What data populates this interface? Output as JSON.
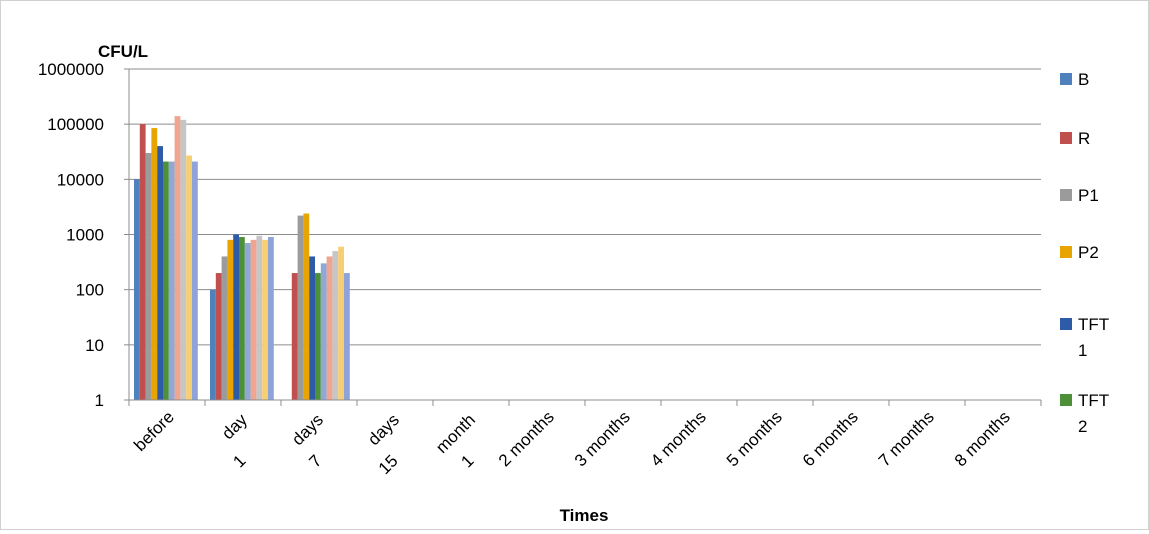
{
  "chart_data": {
    "type": "bar",
    "ylabel": "CFU/L",
    "xlabel": "Times",
    "yscale": "log",
    "ylim": [
      1,
      1000000
    ],
    "yticks": [
      "1",
      "10",
      "100",
      "1000",
      "10000",
      "100000",
      "1000000"
    ],
    "grid": true,
    "legend_position": "right",
    "categories": [
      "before",
      "1 day",
      "7 days",
      "15 days",
      "1 month",
      "2 months",
      "3 months",
      "4 months",
      "5 months",
      "6 months",
      "7 months",
      "8 months"
    ],
    "category_labels": [
      {
        "a": "before",
        "b": ""
      },
      {
        "a": "1",
        "b": "day"
      },
      {
        "a": "7",
        "b": "days"
      },
      {
        "a": "15",
        "b": "days"
      },
      {
        "a": "1",
        "b": "month"
      },
      {
        "a": "2 months",
        "b": ""
      },
      {
        "a": "3 months",
        "b": ""
      },
      {
        "a": "4 months",
        "b": ""
      },
      {
        "a": "5 months",
        "b": ""
      },
      {
        "a": "6 months",
        "b": ""
      },
      {
        "a": "7 months",
        "b": ""
      },
      {
        "a": "8 months",
        "b": ""
      }
    ],
    "series": [
      {
        "name": "B",
        "color": "#4F81BD",
        "values": [
          10000,
          100,
          null,
          null,
          null,
          null,
          null,
          null,
          null,
          null,
          null,
          null
        ]
      },
      {
        "name": "R",
        "color": "#C0504D",
        "values": [
          100000,
          200,
          200,
          null,
          null,
          null,
          null,
          null,
          null,
          null,
          null,
          null
        ]
      },
      {
        "name": "P1",
        "color": "#9B9B9B",
        "values": [
          30000,
          400,
          2200,
          null,
          null,
          null,
          null,
          null,
          null,
          null,
          null,
          null
        ]
      },
      {
        "name": "P2",
        "color": "#E8A400",
        "values": [
          85000,
          800,
          2400,
          null,
          null,
          null,
          null,
          null,
          null,
          null,
          null,
          null
        ]
      },
      {
        "name": "TFT 1",
        "color": "#2E5BA8",
        "values": [
          40000,
          1000,
          400,
          null,
          null,
          null,
          null,
          null,
          null,
          null,
          null,
          null
        ]
      },
      {
        "name": "TFT 2",
        "color": "#4E8F3A",
        "values": [
          21000,
          900,
          200,
          null,
          null,
          null,
          null,
          null,
          null,
          null,
          null,
          null
        ]
      },
      {
        "name": "",
        "color": "#8FA9D6",
        "values": [
          21000,
          700,
          300,
          null,
          null,
          null,
          null,
          null,
          null,
          null,
          null,
          null
        ]
      },
      {
        "name": "",
        "color": "#EFA590",
        "values": [
          140000,
          800,
          400,
          null,
          null,
          null,
          null,
          null,
          null,
          null,
          null,
          null
        ]
      },
      {
        "name": "",
        "color": "#C6C6C6",
        "values": [
          120000,
          950,
          500,
          null,
          null,
          null,
          null,
          null,
          null,
          null,
          null,
          null
        ]
      },
      {
        "name": "",
        "color": "#F7CF72",
        "values": [
          27000,
          800,
          600,
          null,
          null,
          null,
          null,
          null,
          null,
          null,
          null,
          null
        ]
      },
      {
        "name": "",
        "color": "#8EA3D8",
        "values": [
          21000,
          900,
          200,
          null,
          null,
          null,
          null,
          null,
          null,
          null,
          null,
          null
        ]
      }
    ],
    "legend": [
      {
        "lines": [
          "B"
        ],
        "color": "#4F81BD"
      },
      {
        "lines": [
          "R"
        ],
        "color": "#C0504D"
      },
      {
        "lines": [
          "P1"
        ],
        "color": "#9B9B9B"
      },
      {
        "lines": [
          "P2"
        ],
        "color": "#E8A400"
      },
      {
        "lines": [
          "TFT",
          "1"
        ],
        "color": "#2E5BA8"
      },
      {
        "lines": [
          "TFT",
          "2"
        ],
        "color": "#4E8F3A"
      }
    ]
  }
}
